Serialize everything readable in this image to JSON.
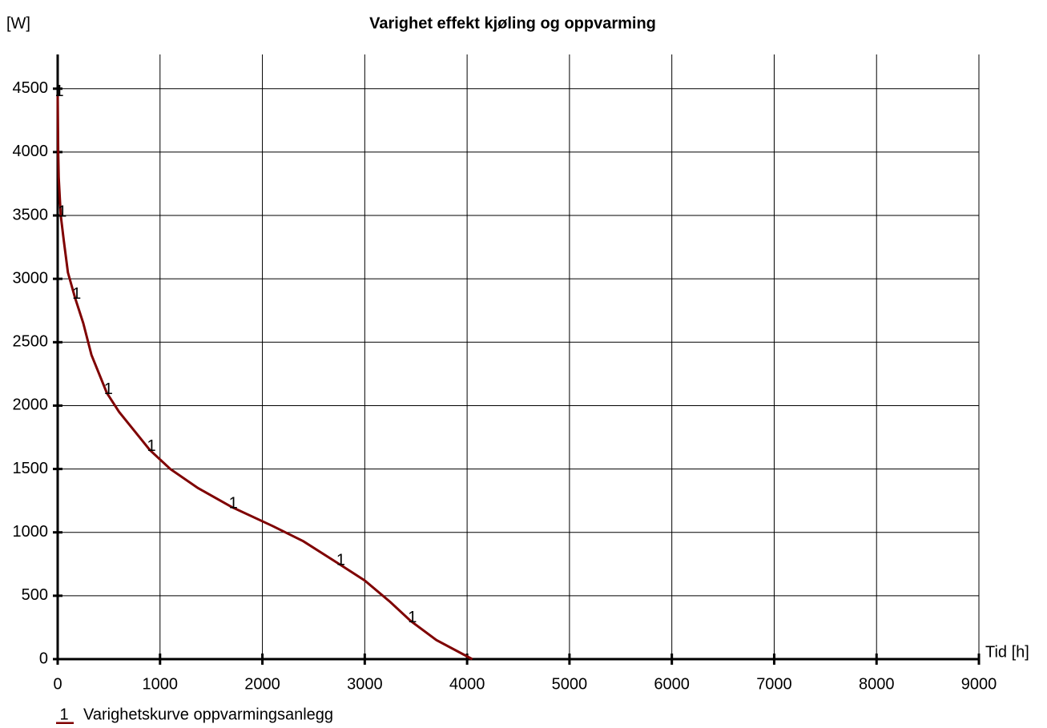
{
  "chart_data": {
    "type": "line",
    "title": "Varighet effekt kjøling og oppvarming",
    "y_label": "[W]",
    "x_label": "Tid [h]",
    "x": [
      0,
      5,
      10,
      30,
      60,
      100,
      170,
      250,
      330,
      480,
      600,
      750,
      900,
      1100,
      1370,
      1700,
      2100,
      2400,
      2750,
      3000,
      3250,
      3450,
      3700,
      4050
    ],
    "series": [
      {
        "name": "Varighetskurve oppvarmingsanlegg",
        "marker": "1",
        "color": "#7f0000",
        "values": [
          4450,
          4000,
          3800,
          3500,
          3300,
          3050,
          2850,
          2650,
          2400,
          2100,
          1950,
          1800,
          1650,
          1500,
          1350,
          1200,
          1050,
          930,
          750,
          620,
          450,
          300,
          150,
          0
        ]
      }
    ],
    "xlim": [
      0,
      9000
    ],
    "ylim": [
      0,
      4770
    ],
    "xticks": [
      0,
      1000,
      2000,
      3000,
      4000,
      5000,
      6000,
      7000,
      8000,
      9000
    ],
    "yticks": [
      0,
      500,
      1000,
      1500,
      2000,
      2500,
      3000,
      3500,
      4000,
      4500
    ],
    "grid": true
  }
}
